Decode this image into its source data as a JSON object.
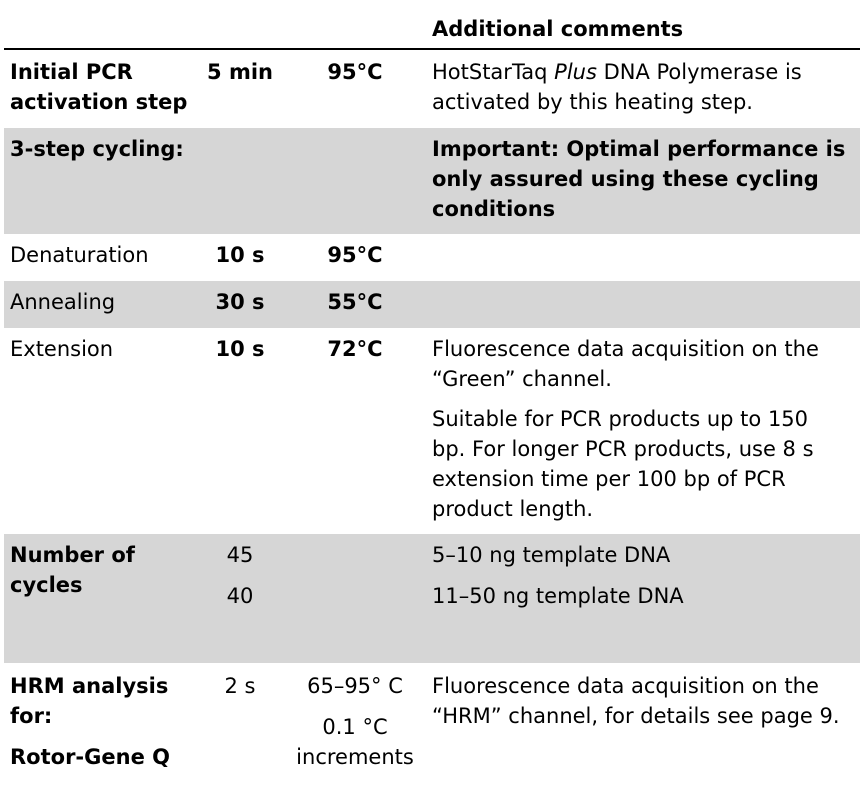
{
  "header": {
    "comments_title": "Additional comments"
  },
  "rows": {
    "initial": {
      "step_line1": "Initial PCR",
      "step_line2": "activation step",
      "time": "5 min",
      "temp": "95°C",
      "comment_pre": "HotStarTaq ",
      "comment_italic": "Plus",
      "comment_post": " DNA Polymerase is activated by this heating step."
    },
    "cycling": {
      "step": "3-step cycling:",
      "comment": "Important: Optimal performance is only assured using these cycling conditions"
    },
    "denaturation": {
      "step": "Denaturation",
      "time": "10 s",
      "temp": "95°C"
    },
    "annealing": {
      "step": "Annealing",
      "time": "30 s",
      "temp": "55°C"
    },
    "extension": {
      "step": "Extension",
      "time": "10 s",
      "temp": "72°C",
      "comment1": "Fluorescence data acquisition on the “Green” channel.",
      "comment2": "Suitable for PCR products up to 150 bp. For longer PCR products, use 8 s extension time per 100 bp of PCR product length."
    },
    "cycles": {
      "step_line1": "Number of",
      "step_line2": "cycles",
      "count1": "45",
      "count2": "40",
      "comment1": "5–10 ng template DNA",
      "comment2": "11–50 ng template DNA"
    },
    "hrm": {
      "step_line1": "HRM analysis",
      "step_line2": "for:",
      "step_line3": "Rotor-Gene Q",
      "time": "2 s",
      "temp_line1": "65–95° C",
      "temp_line2": "0.1 °C",
      "temp_line3": "increments",
      "comment": "Fluorescence data acquisition on the “HRM” channel, for details see page 9."
    }
  }
}
